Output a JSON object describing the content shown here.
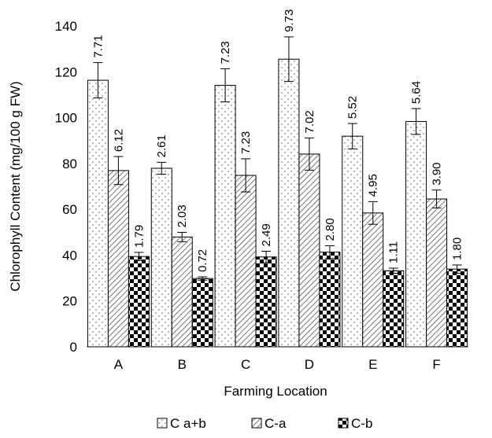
{
  "chart_data": {
    "type": "bar",
    "xlabel": "Farming Location",
    "ylabel": "Chlorophyll Content (mg/100 g FW)",
    "categories": [
      "A",
      "B",
      "C",
      "D",
      "E",
      "F"
    ],
    "ylim": [
      0,
      140
    ],
    "yticks": [
      0,
      20,
      40,
      60,
      80,
      100,
      120,
      140
    ],
    "grid": false,
    "legend_position": "bottom",
    "series": [
      {
        "name": "C a+b",
        "pattern": "dots",
        "values": [
          116.3,
          77.9,
          114.1,
          125.5,
          91.9,
          98.3
        ],
        "errors": [
          7.71,
          2.61,
          7.23,
          9.73,
          5.52,
          5.64
        ],
        "error_labels": [
          "7.71",
          "2.61",
          "7.23",
          "9.73",
          "5.52",
          "5.64"
        ]
      },
      {
        "name": "C-a",
        "pattern": "diagonal",
        "values": [
          76.9,
          47.9,
          74.8,
          84.1,
          58.4,
          64.5
        ],
        "errors": [
          6.12,
          2.03,
          7.23,
          7.02,
          4.95,
          3.9
        ],
        "error_labels": [
          "6.12",
          "2.03",
          "7.23",
          "7.02",
          "4.95",
          "3.90"
        ]
      },
      {
        "name": "C-b",
        "pattern": "checker",
        "values": [
          39.4,
          29.8,
          39.2,
          41.3,
          33.2,
          33.9
        ],
        "errors": [
          1.79,
          0.72,
          2.49,
          2.8,
          1.11,
          1.8
        ],
        "error_labels": [
          "1.79",
          "0.72",
          "2.49",
          "2.80",
          "1.11",
          "1.80"
        ]
      }
    ]
  }
}
